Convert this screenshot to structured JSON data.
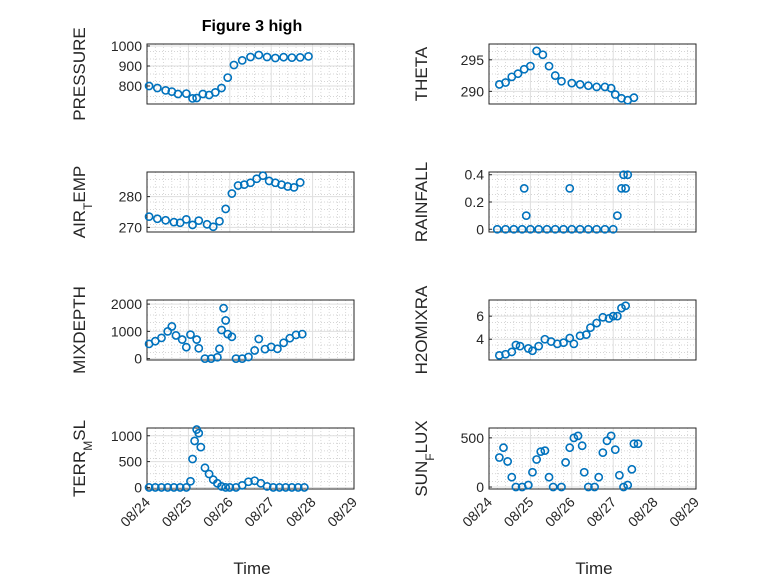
{
  "figure": {
    "title": "Figure 3 high"
  },
  "style": {
    "marker_color": "#0072BD",
    "marker": "circle",
    "grid": "major and minor"
  },
  "x_axis": {
    "label": "Time",
    "ticks": [
      "08/24",
      "08/25",
      "08/26",
      "08/27",
      "08/28",
      "08/29"
    ]
  },
  "panels": [
    {
      "id": "pressure",
      "ylabel": "PRESSURE",
      "yticks": [
        "800",
        "900",
        "1000"
      ],
      "ylim": [
        710,
        1010
      ],
      "series": [
        [
          0.05,
          800
        ],
        [
          0.25,
          790
        ],
        [
          0.45,
          778
        ],
        [
          0.6,
          772
        ],
        [
          0.75,
          760
        ],
        [
          0.95,
          762
        ],
        [
          1.1,
          738
        ],
        [
          1.2,
          740
        ],
        [
          1.35,
          760
        ],
        [
          1.5,
          755
        ],
        [
          1.65,
          768
        ],
        [
          1.8,
          790
        ],
        [
          1.95,
          842
        ],
        [
          2.1,
          905
        ],
        [
          2.3,
          928
        ],
        [
          2.5,
          945
        ],
        [
          2.7,
          955
        ],
        [
          2.9,
          945
        ],
        [
          3.1,
          940
        ],
        [
          3.3,
          944
        ],
        [
          3.5,
          942
        ],
        [
          3.7,
          943
        ],
        [
          3.9,
          948
        ]
      ]
    },
    {
      "id": "theta",
      "ylabel": "THETA",
      "yticks": [
        "290",
        "295"
      ],
      "ylim": [
        288,
        297.5
      ],
      "series": [
        [
          0.25,
          291.1
        ],
        [
          0.4,
          291.4
        ],
        [
          0.55,
          292.3
        ],
        [
          0.7,
          292.8
        ],
        [
          0.85,
          293.5
        ],
        [
          1,
          294
        ],
        [
          1.15,
          296.4
        ],
        [
          1.3,
          295.8
        ],
        [
          1.45,
          294
        ],
        [
          1.6,
          292.5
        ],
        [
          1.75,
          291.6
        ],
        [
          2,
          291.3
        ],
        [
          2.2,
          291.1
        ],
        [
          2.4,
          290.9
        ],
        [
          2.6,
          290.7
        ],
        [
          2.8,
          290.7
        ],
        [
          2.95,
          290.5
        ],
        [
          3.05,
          289.5
        ],
        [
          3.2,
          288.9
        ],
        [
          3.35,
          288.6
        ],
        [
          3.5,
          289
        ]
      ]
    },
    {
      "id": "air_temp",
      "ylabel": "AIR_TEMP",
      "yticks": [
        "270",
        "280"
      ],
      "ylim": [
        268.5,
        288
      ],
      "series": [
        [
          0.05,
          273.5
        ],
        [
          0.25,
          272.8
        ],
        [
          0.45,
          272.3
        ],
        [
          0.65,
          271.7
        ],
        [
          0.8,
          271.5
        ],
        [
          0.95,
          272.6
        ],
        [
          1.1,
          270.8
        ],
        [
          1.25,
          272.2
        ],
        [
          1.45,
          271
        ],
        [
          1.6,
          270.2
        ],
        [
          1.75,
          272
        ],
        [
          1.9,
          276
        ],
        [
          2.05,
          281
        ],
        [
          2.2,
          283.6
        ],
        [
          2.35,
          283.9
        ],
        [
          2.5,
          284.5
        ],
        [
          2.65,
          285.8
        ],
        [
          2.8,
          286.8
        ],
        [
          2.95,
          285.1
        ],
        [
          3.1,
          284.5
        ],
        [
          3.25,
          283.9
        ],
        [
          3.4,
          283.3
        ],
        [
          3.55,
          283
        ],
        [
          3.7,
          284.6
        ]
      ]
    },
    {
      "id": "rainfall",
      "ylabel": "RAINFALL",
      "yticks": [
        "0",
        "0.2",
        "0.4"
      ],
      "ylim": [
        -0.02,
        0.42
      ],
      "series": [
        [
          0.2,
          0
        ],
        [
          0.4,
          0
        ],
        [
          0.6,
          0
        ],
        [
          0.8,
          0
        ],
        [
          0.85,
          0.3
        ],
        [
          0.9,
          0.1
        ],
        [
          1.0,
          0
        ],
        [
          1.2,
          0
        ],
        [
          1.4,
          0
        ],
        [
          1.6,
          0
        ],
        [
          1.8,
          0
        ],
        [
          1.95,
          0.3
        ],
        [
          2.0,
          0
        ],
        [
          2.2,
          0
        ],
        [
          2.4,
          0
        ],
        [
          2.6,
          0
        ],
        [
          2.8,
          0
        ],
        [
          3.0,
          0
        ],
        [
          3.1,
          0.1
        ],
        [
          3.2,
          0.3
        ],
        [
          3.25,
          0.4
        ],
        [
          3.3,
          0.3
        ],
        [
          3.35,
          0.4
        ]
      ]
    },
    {
      "id": "mixdepth",
      "ylabel": "MIXDEPTH",
      "yticks": [
        "0",
        "1000",
        "2000"
      ],
      "ylim": [
        -50,
        2150
      ],
      "series": [
        [
          0.05,
          540
        ],
        [
          0.2,
          640
        ],
        [
          0.35,
          760
        ],
        [
          0.5,
          1000
        ],
        [
          0.6,
          1180
        ],
        [
          0.7,
          850
        ],
        [
          0.85,
          700
        ],
        [
          0.95,
          420
        ],
        [
          1.05,
          880
        ],
        [
          1.2,
          700
        ],
        [
          1.25,
          380
        ],
        [
          1.4,
          0
        ],
        [
          1.55,
          0
        ],
        [
          1.7,
          50
        ],
        [
          1.75,
          360
        ],
        [
          1.8,
          1050
        ],
        [
          1.85,
          1850
        ],
        [
          1.9,
          1400
        ],
        [
          1.95,
          900
        ],
        [
          2.05,
          800
        ],
        [
          2.15,
          0
        ],
        [
          2.3,
          0
        ],
        [
          2.45,
          60
        ],
        [
          2.6,
          300
        ],
        [
          2.7,
          720
        ],
        [
          2.85,
          350
        ],
        [
          3.0,
          430
        ],
        [
          3.15,
          360
        ],
        [
          3.3,
          580
        ],
        [
          3.45,
          750
        ],
        [
          3.6,
          870
        ],
        [
          3.75,
          900
        ]
      ]
    },
    {
      "id": "h2omixra",
      "ylabel": "H2OMIXRA",
      "yticks": [
        "4",
        "6"
      ],
      "ylim": [
        2.2,
        7.4
      ],
      "series": [
        [
          0.25,
          2.6
        ],
        [
          0.4,
          2.7
        ],
        [
          0.55,
          2.9
        ],
        [
          0.65,
          3.5
        ],
        [
          0.75,
          3.4
        ],
        [
          0.95,
          3.2
        ],
        [
          1.05,
          3.0
        ],
        [
          1.2,
          3.4
        ],
        [
          1.35,
          4.0
        ],
        [
          1.5,
          3.8
        ],
        [
          1.65,
          3.6
        ],
        [
          1.8,
          3.7
        ],
        [
          1.95,
          4.1
        ],
        [
          2.05,
          3.6
        ],
        [
          2.2,
          4.3
        ],
        [
          2.35,
          4.4
        ],
        [
          2.45,
          5.0
        ],
        [
          2.6,
          5.4
        ],
        [
          2.75,
          5.9
        ],
        [
          2.9,
          5.8
        ],
        [
          3.0,
          6.0
        ],
        [
          3.1,
          6.0
        ],
        [
          3.2,
          6.7
        ],
        [
          3.3,
          6.9
        ]
      ]
    },
    {
      "id": "terr_msl",
      "ylabel": "TERR_MSL",
      "yticks": [
        "0",
        "500",
        "1000"
      ],
      "ylim": [
        -30,
        1150
      ],
      "series": [
        [
          0.05,
          0
        ],
        [
          0.2,
          0
        ],
        [
          0.35,
          0
        ],
        [
          0.5,
          0
        ],
        [
          0.65,
          0
        ],
        [
          0.8,
          0
        ],
        [
          0.95,
          0
        ],
        [
          1.05,
          120
        ],
        [
          1.1,
          550
        ],
        [
          1.15,
          900
        ],
        [
          1.2,
          1120
        ],
        [
          1.25,
          1050
        ],
        [
          1.3,
          780
        ],
        [
          1.4,
          380
        ],
        [
          1.5,
          260
        ],
        [
          1.6,
          150
        ],
        [
          1.7,
          80
        ],
        [
          1.8,
          20
        ],
        [
          1.9,
          0
        ],
        [
          2.0,
          0
        ],
        [
          2.15,
          0
        ],
        [
          2.3,
          40
        ],
        [
          2.45,
          110
        ],
        [
          2.6,
          130
        ],
        [
          2.75,
          80
        ],
        [
          2.9,
          20
        ],
        [
          3.05,
          0
        ],
        [
          3.2,
          0
        ],
        [
          3.35,
          0
        ],
        [
          3.5,
          0
        ],
        [
          3.65,
          0
        ],
        [
          3.8,
          0
        ]
      ]
    },
    {
      "id": "sun_flux",
      "ylabel": "SUN_FLUX",
      "yticks": [
        "0",
        "500"
      ],
      "ylim": [
        -20,
        600
      ],
      "series": [
        [
          0.25,
          300
        ],
        [
          0.35,
          400
        ],
        [
          0.45,
          260
        ],
        [
          0.55,
          100
        ],
        [
          0.65,
          0
        ],
        [
          0.8,
          0
        ],
        [
          0.95,
          20
        ],
        [
          1.05,
          150
        ],
        [
          1.15,
          280
        ],
        [
          1.25,
          360
        ],
        [
          1.35,
          370
        ],
        [
          1.45,
          100
        ],
        [
          1.55,
          0
        ],
        [
          1.75,
          0
        ],
        [
          1.85,
          250
        ],
        [
          1.95,
          400
        ],
        [
          2.05,
          500
        ],
        [
          2.15,
          520
        ],
        [
          2.25,
          420
        ],
        [
          2.3,
          150
        ],
        [
          2.4,
          0
        ],
        [
          2.55,
          0
        ],
        [
          2.65,
          100
        ],
        [
          2.75,
          350
        ],
        [
          2.85,
          470
        ],
        [
          2.95,
          520
        ],
        [
          3.05,
          380
        ],
        [
          3.15,
          120
        ],
        [
          3.25,
          0
        ],
        [
          3.35,
          20
        ],
        [
          3.45,
          180
        ],
        [
          3.5,
          440
        ],
        [
          3.6,
          440
        ]
      ]
    }
  ]
}
